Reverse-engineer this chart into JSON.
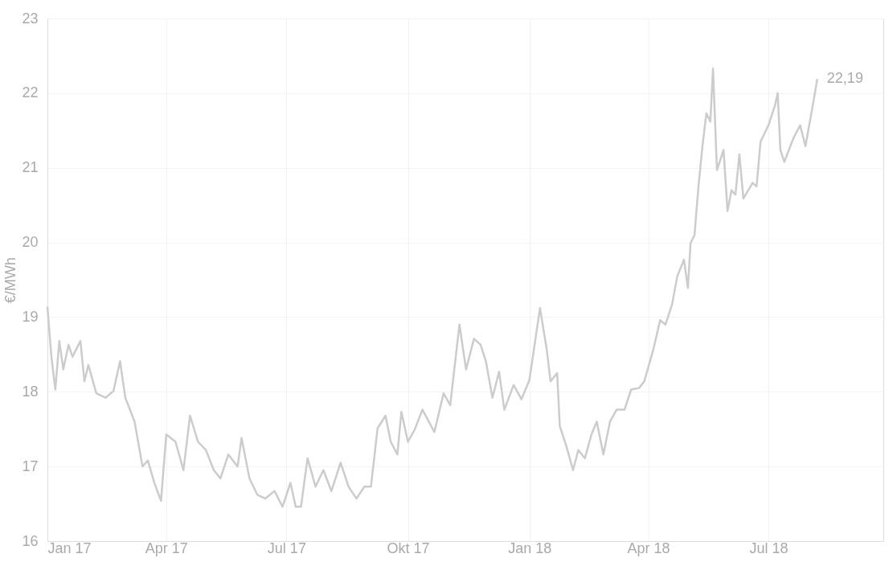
{
  "chart_data": {
    "type": "line",
    "ylabel": "€/MWh",
    "xlim": [
      "2017-01-01",
      "2018-09-26"
    ],
    "ylim": [
      16,
      23
    ],
    "yticks": [
      16,
      17,
      18,
      19,
      20,
      21,
      22,
      23
    ],
    "xticks": [
      {
        "value": "2017-01-01",
        "label": "Jan 17"
      },
      {
        "value": "2017-04-01",
        "label": "Apr 17"
      },
      {
        "value": "2017-07-01",
        "label": "Jul 17"
      },
      {
        "value": "2017-10-01",
        "label": "Okt 17"
      },
      {
        "value": "2018-01-01",
        "label": "Jan 18"
      },
      {
        "value": "2018-04-01",
        "label": "Apr 18"
      },
      {
        "value": "2018-07-01",
        "label": "Jul 18"
      }
    ],
    "grid": true,
    "annotations": [
      {
        "text": "22,19",
        "x": "2018-08-07",
        "y": 22.19
      }
    ],
    "series": [
      {
        "color": "#cccccc",
        "x": [
          "2017-01-01",
          "2017-01-04",
          "2017-01-07",
          "2017-01-10",
          "2017-01-13",
          "2017-01-17",
          "2017-01-20",
          "2017-01-26",
          "2017-01-29",
          "2017-02-01",
          "2017-02-07",
          "2017-02-14",
          "2017-02-20",
          "2017-02-25",
          "2017-03-01",
          "2017-03-08",
          "2017-03-14",
          "2017-03-18",
          "2017-03-23",
          "2017-03-28",
          "2017-04-01",
          "2017-04-08",
          "2017-04-14",
          "2017-04-19",
          "2017-04-25",
          "2017-05-01",
          "2017-05-07",
          "2017-05-12",
          "2017-05-18",
          "2017-05-25",
          "2017-05-28",
          "2017-06-03",
          "2017-06-09",
          "2017-06-15",
          "2017-06-22",
          "2017-06-28",
          "2017-07-04",
          "2017-07-08",
          "2017-07-12",
          "2017-07-17",
          "2017-07-23",
          "2017-07-29",
          "2017-08-04",
          "2017-08-11",
          "2017-08-17",
          "2017-08-23",
          "2017-08-29",
          "2017-09-03",
          "2017-09-08",
          "2017-09-14",
          "2017-09-18",
          "2017-09-23",
          "2017-09-26",
          "2017-10-01",
          "2017-10-06",
          "2017-10-12",
          "2017-10-21",
          "2017-10-28",
          "2017-11-02",
          "2017-11-09",
          "2017-11-14",
          "2017-11-20",
          "2017-11-25",
          "2017-11-29",
          "2017-12-04",
          "2017-12-09",
          "2017-12-13",
          "2017-12-20",
          "2017-12-26",
          "2018-01-01",
          "2018-01-09",
          "2018-01-14",
          "2018-01-17",
          "2018-01-22",
          "2018-01-24",
          "2018-01-29",
          "2018-02-03",
          "2018-02-07",
          "2018-02-12",
          "2018-02-17",
          "2018-02-21",
          "2018-02-26",
          "2018-03-03",
          "2018-03-08",
          "2018-03-14",
          "2018-03-19",
          "2018-03-25",
          "2018-03-29",
          "2018-04-05",
          "2018-04-10",
          "2018-04-14",
          "2018-04-19",
          "2018-04-23",
          "2018-04-28",
          "2018-05-01",
          "2018-05-03",
          "2018-05-06",
          "2018-05-09",
          "2018-05-12",
          "2018-05-15",
          "2018-05-18",
          "2018-05-20",
          "2018-05-23",
          "2018-05-28",
          "2018-05-31",
          "2018-06-03",
          "2018-06-06",
          "2018-06-09",
          "2018-06-12",
          "2018-06-19",
          "2018-06-22",
          "2018-06-25",
          "2018-07-01",
          "2018-07-06",
          "2018-07-08",
          "2018-07-10",
          "2018-07-13",
          "2018-07-20",
          "2018-07-25",
          "2018-07-29",
          "2018-08-03",
          "2018-08-07"
        ],
        "values": [
          19.14,
          18.47,
          18.03,
          18.68,
          18.3,
          18.63,
          18.47,
          18.68,
          18.14,
          18.36,
          17.98,
          17.92,
          18.01,
          18.41,
          17.92,
          17.6,
          17.0,
          17.08,
          16.78,
          16.54,
          17.43,
          17.33,
          16.95,
          17.68,
          17.33,
          17.22,
          16.95,
          16.84,
          17.16,
          17.0,
          17.38,
          16.84,
          16.62,
          16.57,
          16.67,
          16.46,
          16.78,
          16.46,
          16.46,
          17.11,
          16.73,
          16.95,
          16.67,
          17.05,
          16.73,
          16.57,
          16.73,
          16.73,
          17.51,
          17.68,
          17.33,
          17.16,
          17.73,
          17.33,
          17.49,
          17.76,
          17.46,
          17.98,
          17.82,
          18.9,
          18.3,
          18.71,
          18.63,
          18.41,
          17.92,
          18.27,
          17.76,
          18.09,
          17.9,
          18.16,
          19.12,
          18.58,
          18.14,
          18.25,
          17.54,
          17.27,
          16.95,
          17.22,
          17.11,
          17.43,
          17.6,
          17.16,
          17.6,
          17.76,
          17.76,
          18.03,
          18.05,
          18.14,
          18.58,
          18.96,
          18.9,
          19.17,
          19.55,
          19.77,
          19.39,
          19.99,
          20.1,
          20.75,
          21.29,
          21.73,
          21.62,
          22.33,
          20.97,
          21.24,
          20.42,
          20.7,
          20.64,
          21.18,
          20.59,
          20.8,
          20.75,
          21.35,
          21.57,
          21.84,
          22.0,
          21.24,
          21.08,
          21.4,
          21.57,
          21.29,
          21.78,
          22.19
        ]
      }
    ]
  }
}
